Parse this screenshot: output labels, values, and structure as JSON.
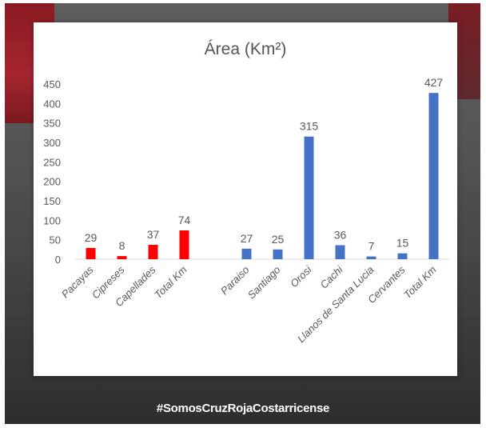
{
  "chart_data": {
    "type": "bar",
    "title": "Área (Km²)",
    "xlabel": "",
    "ylabel": "",
    "ylim": [
      0,
      450
    ],
    "yticks": [
      0,
      50,
      100,
      150,
      200,
      250,
      300,
      350,
      400,
      450
    ],
    "grid": false,
    "legend": "none",
    "groups": [
      {
        "color": "#ff0000",
        "categories": [
          "Pacayas",
          "Cipreses",
          "Capellades",
          "Total Km"
        ],
        "values": [
          29,
          8,
          37,
          74
        ]
      },
      {
        "color": "#4472c4",
        "categories": [
          "Paraiso",
          "Santiago",
          "Orosi",
          "Cachi",
          "Llanos de Santa Lucia",
          "Cervantes",
          "Total Km"
        ],
        "values": [
          27,
          25,
          315,
          36,
          7,
          15,
          427
        ]
      }
    ]
  },
  "footer": {
    "hashtag": "#SomosCruzRojaCostarricense"
  },
  "colors": {
    "axis_text": "#595959",
    "background_photo": "#555555"
  }
}
